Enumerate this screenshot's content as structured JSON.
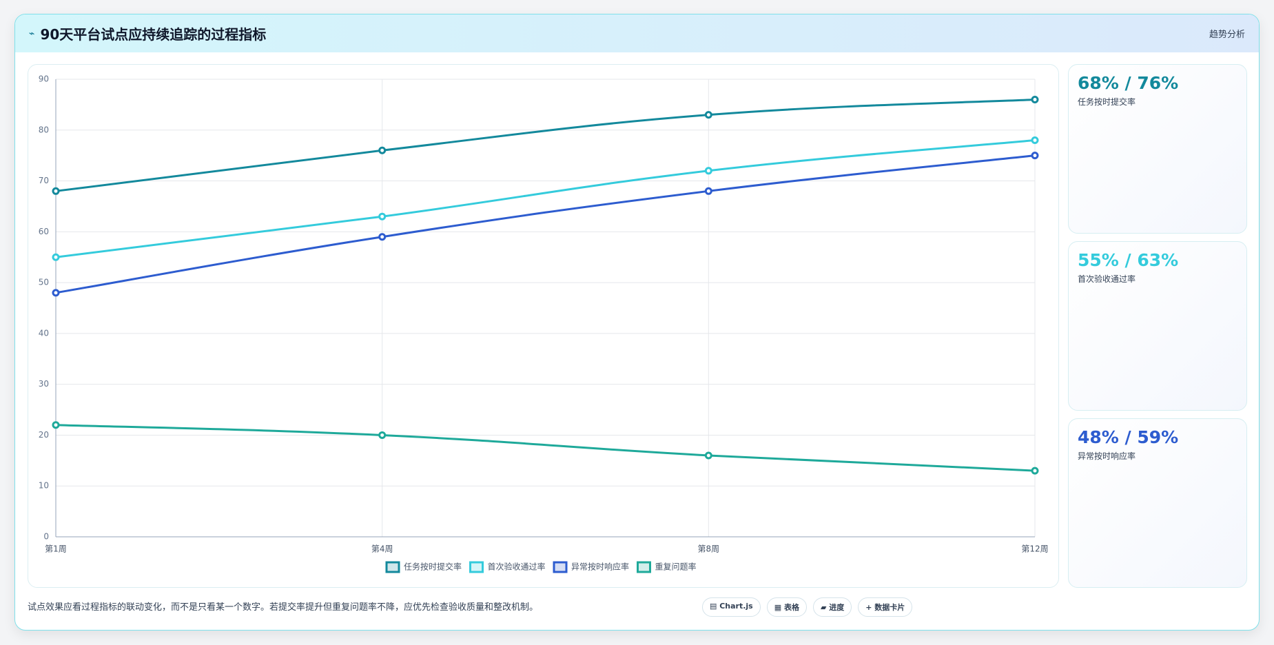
{
  "header": {
    "icon": "⌁",
    "title": "90天平台试点应持续追踪的过程指标",
    "tag": "趋势分析"
  },
  "chart_data": {
    "type": "line",
    "categories": [
      "第1周",
      "第4周",
      "第8周",
      "第12周"
    ],
    "series": [
      {
        "name": "任务按时提交率",
        "color": "#13899c",
        "values": [
          68,
          76,
          83,
          86
        ]
      },
      {
        "name": "首次验收通过率",
        "color": "#34cbdc",
        "values": [
          55,
          63,
          72,
          78
        ]
      },
      {
        "name": "异常按时响应率",
        "color": "#2d5ccf",
        "values": [
          48,
          59,
          68,
          75
        ]
      },
      {
        "name": "重复问题率",
        "color": "#1ea99a",
        "values": [
          22,
          20,
          16,
          13
        ]
      }
    ],
    "ylim": [
      0,
      90
    ],
    "yticks": [
      0,
      10,
      20,
      30,
      40,
      50,
      60,
      70,
      80,
      90
    ],
    "grid": true,
    "legend": "bottom"
  },
  "cards": [
    {
      "value": "68% / 76%",
      "label": "任务按时提交率",
      "color": "#13899c"
    },
    {
      "value": "55% / 63%",
      "label": "首次验收通过率",
      "color": "#34cbdc"
    },
    {
      "value": "48% / 59%",
      "label": "异常按时响应率",
      "color": "#2d5ccf"
    }
  ],
  "footer": {
    "note": "试点效果应看过程指标的联动变化，而不是只看某一个数字。若提交率提升但重复问题率不降，应优先检查验收质量和整改机制。",
    "buttons": [
      "▤ Chart.js",
      "▦ 表格",
      "▰ 进度",
      "+ 数据卡片"
    ]
  }
}
